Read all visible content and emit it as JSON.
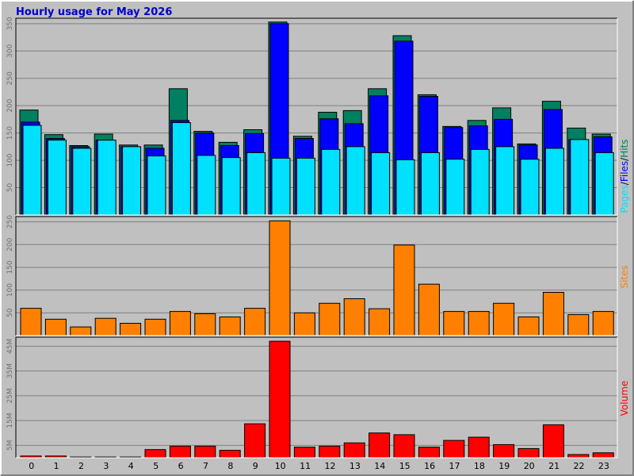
{
  "chart_data": [
    {
      "type": "bar",
      "title": "Hourly usage for May 2026",
      "legend_separator": "/",
      "ylim": [
        0,
        357
      ],
      "yticks": [
        50,
        100,
        150,
        200,
        250,
        300,
        350
      ],
      "grid": true,
      "series": [
        {
          "name": "Hits",
          "color": "#008060",
          "values": [
            192,
            147,
            127,
            148,
            128,
            128,
            231,
            153,
            133,
            156,
            353,
            144,
            188,
            191,
            231,
            328,
            220,
            162,
            173,
            196,
            130,
            208,
            159,
            148
          ]
        },
        {
          "name": "Files",
          "color": "#0000ff",
          "values": [
            170,
            140,
            125,
            137,
            125,
            122,
            173,
            150,
            127,
            149,
            350,
            140,
            176,
            167,
            218,
            318,
            217,
            160,
            163,
            175,
            128,
            193,
            138,
            143
          ]
        },
        {
          "name": "Pages",
          "color": "#00e0ff",
          "values": [
            164,
            137,
            122,
            137,
            125,
            108,
            169,
            109,
            105,
            114,
            104,
            104,
            120,
            125,
            114,
            101,
            114,
            102,
            120,
            125,
            102,
            122,
            138,
            114
          ]
        }
      ]
    },
    {
      "type": "bar",
      "ylim": [
        0,
        258
      ],
      "yticks": [
        50,
        100,
        150,
        200,
        250
      ],
      "grid": true,
      "series": [
        {
          "name": "Sites",
          "color": "#ff8000",
          "values": [
            60,
            36,
            19,
            38,
            27,
            36,
            53,
            48,
            41,
            60,
            252,
            50,
            71,
            81,
            59,
            199,
            113,
            53,
            53,
            71,
            41,
            95,
            46,
            53
          ]
        }
      ]
    },
    {
      "type": "bar",
      "categories": [
        "0",
        "1",
        "2",
        "3",
        "4",
        "5",
        "6",
        "7",
        "8",
        "9",
        "10",
        "11",
        "12",
        "13",
        "14",
        "15",
        "16",
        "17",
        "18",
        "19",
        "20",
        "21",
        "22",
        "23"
      ],
      "ylim": [
        0,
        48000000
      ],
      "yticks": [
        {
          "value": 5000000,
          "label": "5M"
        },
        {
          "value": 15000000,
          "label": "15M"
        },
        {
          "value": 25000000,
          "label": "25M"
        },
        {
          "value": 35000000,
          "label": "35M"
        },
        {
          "value": 45000000,
          "label": "45M"
        }
      ],
      "grid": true,
      "series": [
        {
          "name": "Volume",
          "color": "#ff0000",
          "values": [
            700000,
            700000,
            300000,
            300000,
            300000,
            3300000,
            4700000,
            4700000,
            3000000,
            13700000,
            47000000,
            4300000,
            4700000,
            6000000,
            10000000,
            9300000,
            4300000,
            7000000,
            8300000,
            5300000,
            3700000,
            13300000,
            1300000,
            2000000
          ]
        }
      ]
    }
  ]
}
